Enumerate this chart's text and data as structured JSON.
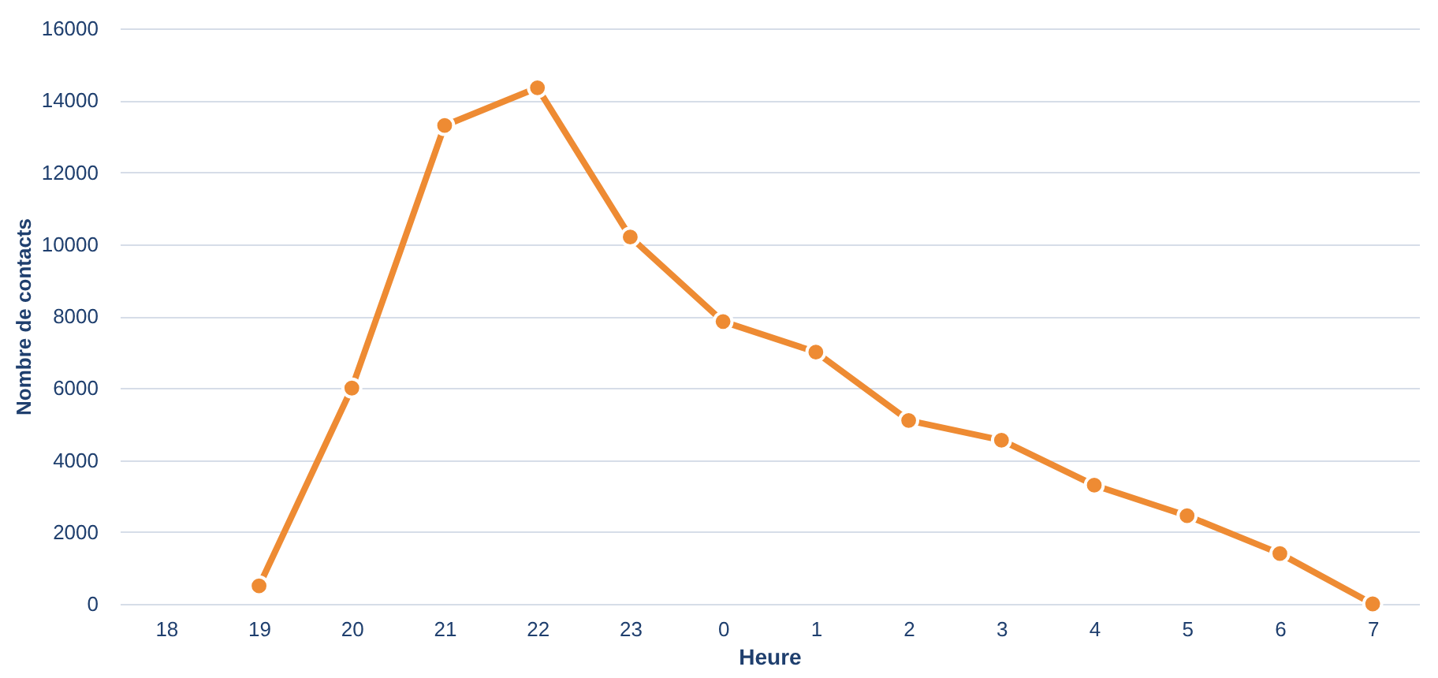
{
  "chart_data": {
    "type": "line",
    "xlabel": "Heure",
    "ylabel": "Nombre de contacts",
    "categories": [
      "18",
      "19",
      "20",
      "21",
      "22",
      "23",
      "0",
      "1",
      "2",
      "3",
      "4",
      "5",
      "6",
      "7"
    ],
    "series": [
      {
        "color": "#ee8b33",
        "values": [
          null,
          500,
          6000,
          13300,
          14350,
          10200,
          7850,
          7000,
          5100,
          4550,
          3300,
          2450,
          1400,
          0
        ]
      }
    ],
    "ylim": [
      0,
      16000
    ],
    "yticks": [
      0,
      2000,
      4000,
      6000,
      8000,
      10000,
      12000,
      14000,
      16000
    ],
    "grid": "y",
    "marker": "circle",
    "line_style": "solid"
  }
}
